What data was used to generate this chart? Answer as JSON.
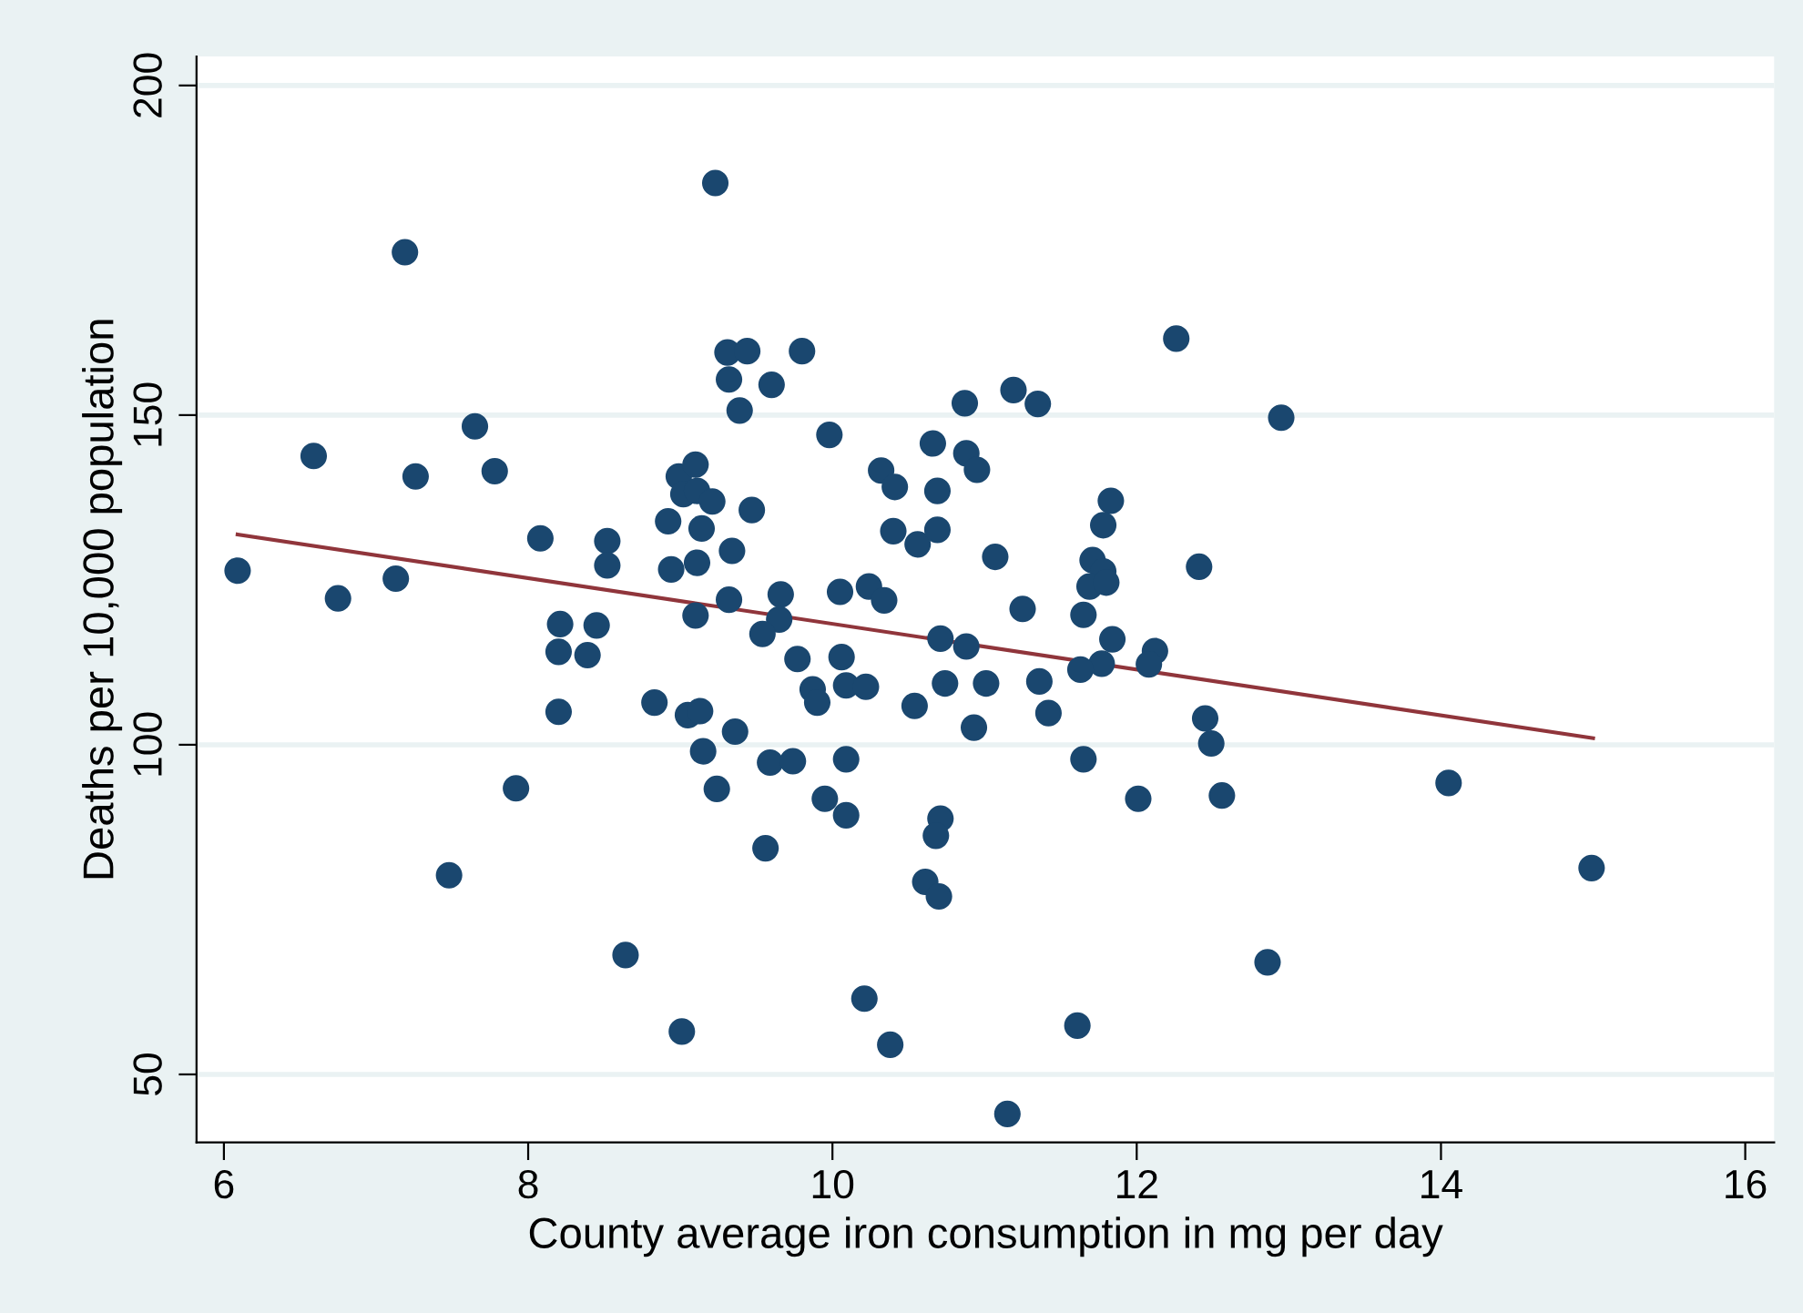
{
  "chart_data": {
    "type": "scatter",
    "xlabel": "County average iron consumption in mg per day",
    "ylabel": "Deaths per 10,000 population",
    "xlim": [
      5.82,
      16.19
    ],
    "ylim": [
      39.7,
      204.4
    ],
    "xticks": [
      6,
      8,
      10,
      12,
      14,
      16
    ],
    "yticks": [
      50,
      100,
      150,
      200
    ],
    "grid": "y",
    "marker": "circle",
    "legend": false,
    "series": [
      {
        "color": "#1a476f",
        "x": [
          6.09,
          6.59,
          6.75,
          7.13,
          7.19,
          7.26,
          7.65,
          7.78,
          8.08,
          8.52,
          8.52,
          8.92,
          8.94,
          8.99,
          9.1,
          9.02,
          9.11,
          9.21,
          9.14,
          9.11,
          9.34,
          9.47,
          9.23,
          9.31,
          9.44,
          9.8,
          9.32,
          9.6,
          9.39,
          9.98,
          10.32,
          10.41,
          10.66,
          10.87,
          10.88,
          10.95,
          10.69,
          10.4,
          10.56,
          10.69,
          9.32,
          9.66,
          10.05,
          10.24,
          10.34,
          9.1,
          9.65,
          8.21,
          8.45,
          8.2,
          8.39,
          8.2,
          8.83,
          9.05,
          9.13,
          9.36,
          9.54,
          9.77,
          10.06,
          9.87,
          9.9,
          10.09,
          10.22,
          10.54,
          10.71,
          10.88,
          10.74,
          10.93,
          11.01,
          9.15,
          9.59,
          9.74,
          10.09,
          7.92,
          9.24,
          9.95,
          10.09,
          10.71,
          10.68,
          9.56,
          7.48,
          10.61,
          10.7,
          8.64,
          10.21,
          9.01,
          10.38,
          11.25,
          11.65,
          11.84,
          12.12,
          12.08,
          11.77,
          11.63,
          11.36,
          11.42,
          12.45,
          12.49,
          11.65,
          12.01,
          12.56,
          14.05,
          14.99,
          12.86,
          11.61,
          11.15,
          12.26,
          11.19,
          11.35,
          12.95,
          11.83,
          11.78,
          11.07,
          11.71,
          11.78,
          11.69,
          11.8,
          12.41
        ],
        "values": [
          126.4,
          143.8,
          122.2,
          125.2,
          174.7,
          140.7,
          148.3,
          141.5,
          131.3,
          130.9,
          127.2,
          133.9,
          126.6,
          140.7,
          142.5,
          138.0,
          138.5,
          136.9,
          132.8,
          127.6,
          129.4,
          135.6,
          185.2,
          159.5,
          159.7,
          159.7,
          155.4,
          154.6,
          150.7,
          147.0,
          141.6,
          139.1,
          145.7,
          151.8,
          144.2,
          141.7,
          138.5,
          132.4,
          130.4,
          132.6,
          122.0,
          122.8,
          123.2,
          124.0,
          121.9,
          119.6,
          119.0,
          118.3,
          118.1,
          114.1,
          113.6,
          105.0,
          106.4,
          104.5,
          105.1,
          102.0,
          116.8,
          113.0,
          113.3,
          108.4,
          106.4,
          109.0,
          108.8,
          105.9,
          116.1,
          114.9,
          109.3,
          102.6,
          109.3,
          99.0,
          97.3,
          97.5,
          97.8,
          93.4,
          93.3,
          91.8,
          89.3,
          88.8,
          86.2,
          84.3,
          80.2,
          79.2,
          77.0,
          68.1,
          61.5,
          56.5,
          54.5,
          120.6,
          119.7,
          116.0,
          114.2,
          112.2,
          112.3,
          111.4,
          109.6,
          104.8,
          104.0,
          100.2,
          97.8,
          91.8,
          92.3,
          94.2,
          81.3,
          67.0,
          57.4,
          44.0,
          161.6,
          153.8,
          151.7,
          149.6,
          137.0,
          133.3,
          128.5,
          128.0,
          126.3,
          124.0,
          124.6,
          127.0
        ]
      },
      {
        "type": "line",
        "color": "#90353b",
        "x": [
          6.09,
          15.0
        ],
        "values": [
          131.9,
          101.0
        ],
        "marker": "none",
        "line_style": "solid"
      }
    ]
  }
}
